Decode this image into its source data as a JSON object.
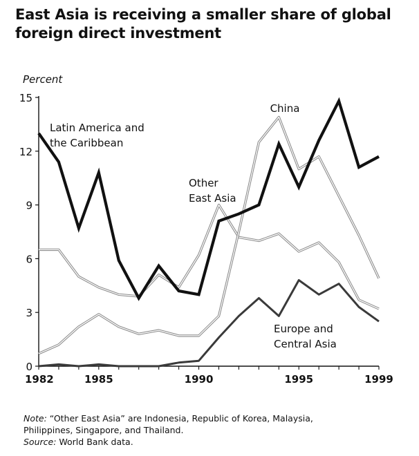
{
  "title_lines": [
    "East Asia is receiving a smaller share of global",
    "foreign direct investment"
  ],
  "chart_data": {
    "type": "line",
    "title": "East Asia is receiving a smaller share of global foreign direct investment",
    "ylabel": "Percent",
    "xlabel": "",
    "xlim": [
      1982,
      1999
    ],
    "ylim": [
      0,
      15
    ],
    "x_ticks": [
      1982,
      1985,
      1990,
      1995,
      1999
    ],
    "y_ticks": [
      0,
      3,
      6,
      9,
      12,
      15
    ],
    "grid": false,
    "legend": "inline labels",
    "x": [
      1982,
      1983,
      1984,
      1985,
      1986,
      1987,
      1988,
      1989,
      1990,
      1991,
      1992,
      1993,
      1994,
      1995,
      1996,
      1997,
      1998,
      1999
    ],
    "series": [
      {
        "name": "Latin America and the Caribbean",
        "label_lines": [
          "Latin America and",
          "the Caribbean"
        ],
        "style": "thick-black",
        "values": [
          13.0,
          11.4,
          7.7,
          10.8,
          5.9,
          3.8,
          5.6,
          4.2,
          4.0,
          8.1,
          8.5,
          9.0,
          12.4,
          10.0,
          12.6,
          14.8,
          11.1,
          11.7
        ]
      },
      {
        "name": "China",
        "label_lines": [
          "China"
        ],
        "style": "double-gray",
        "values": [
          0.7,
          1.2,
          2.2,
          2.9,
          2.2,
          1.8,
          2.0,
          1.7,
          1.7,
          2.8,
          7.5,
          12.5,
          13.9,
          11.0,
          11.7,
          9.5,
          7.3,
          4.9
        ]
      },
      {
        "name": "Other East Asia",
        "label_lines": [
          "Other",
          "East Asia"
        ],
        "style": "double-gray",
        "values": [
          6.5,
          6.5,
          5.0,
          4.4,
          4.0,
          3.9,
          5.1,
          4.4,
          6.2,
          9.0,
          7.2,
          7.0,
          7.4,
          6.4,
          6.9,
          5.8,
          3.7,
          3.2
        ]
      },
      {
        "name": "Europe and Central Asia",
        "label_lines": [
          "Europe and",
          "Central Asia"
        ],
        "style": "medium-dark",
        "values": [
          0.0,
          0.1,
          0.0,
          0.1,
          0.0,
          0.0,
          0.0,
          0.2,
          0.3,
          1.6,
          2.8,
          3.8,
          2.8,
          4.8,
          4.0,
          4.6,
          3.3,
          2.5
        ]
      }
    ]
  },
  "note": {
    "prefix": "Note:",
    "line1": " “Other East Asia” are Indonesia, Republic of Korea, Malaysia,",
    "line2": "Philippines, Singapore, and Thailand.",
    "source_prefix": "Source:",
    "source_text": " World Bank data."
  }
}
